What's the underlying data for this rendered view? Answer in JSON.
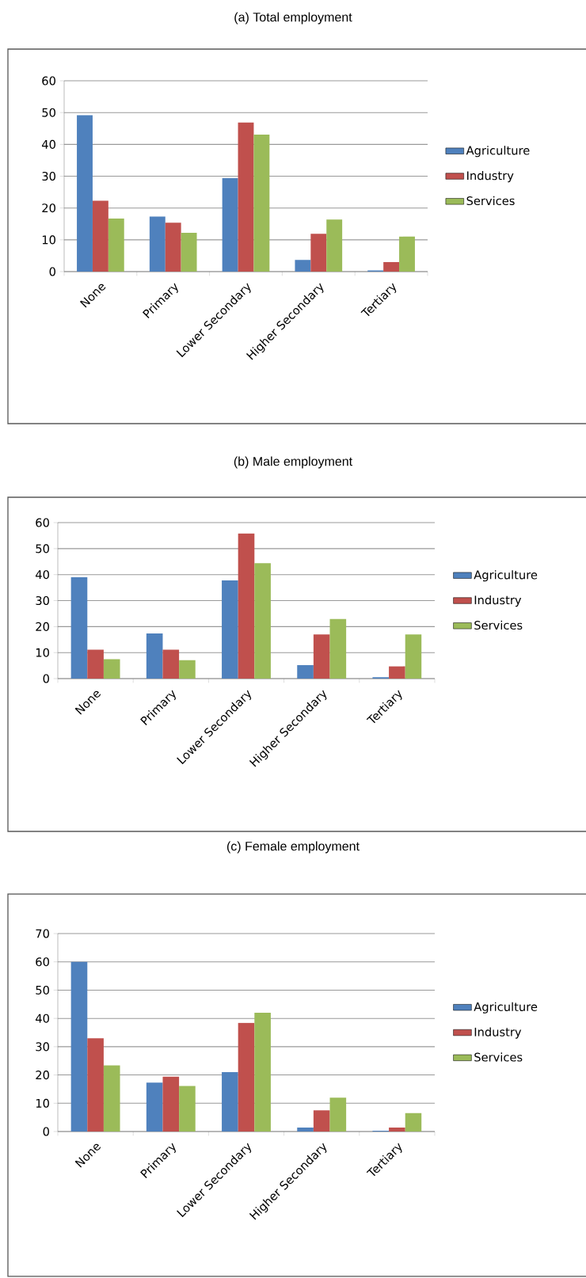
{
  "chart_data": [
    {
      "type": "bar",
      "title": "(a) Total employment",
      "categories": [
        "None",
        "Primary",
        "Lower Secondary",
        "Higher Secondary",
        "Tertiary"
      ],
      "series": [
        {
          "name": "Agriculture",
          "color": "#4f81bd",
          "values": [
            49.2,
            17.3,
            29.4,
            3.7,
            0.4
          ]
        },
        {
          "name": "Industry",
          "color": "#c0504d",
          "values": [
            22.3,
            15.4,
            46.9,
            11.9,
            3.0
          ]
        },
        {
          "name": "Services",
          "color": "#9bbb59",
          "values": [
            16.7,
            12.2,
            43.1,
            16.4,
            11.0
          ]
        }
      ],
      "ylim": [
        0,
        60
      ],
      "yticks": [
        0,
        10,
        20,
        30,
        40,
        50,
        60
      ],
      "grid": "y",
      "legend": "right"
    },
    {
      "type": "bar",
      "title": "(b) Male employment",
      "categories": [
        "None",
        "Primary",
        "Lower Secondary",
        "Higher Secondary",
        "Tertiary"
      ],
      "series": [
        {
          "name": "Agriculture",
          "color": "#4f81bd",
          "values": [
            39.0,
            17.4,
            37.8,
            5.2,
            0.5
          ]
        },
        {
          "name": "Industry",
          "color": "#c0504d",
          "values": [
            11.1,
            11.1,
            55.8,
            17.0,
            4.7
          ]
        },
        {
          "name": "Services",
          "color": "#9bbb59",
          "values": [
            7.5,
            7.1,
            44.4,
            22.9,
            17.0
          ]
        }
      ],
      "ylim": [
        0,
        60
      ],
      "yticks": [
        0,
        10,
        20,
        30,
        40,
        50,
        60
      ],
      "grid": "y",
      "legend": "right"
    },
    {
      "type": "bar",
      "title": "(c) Female employment",
      "categories": [
        "None",
        "Primary",
        "Lower Secondary",
        "Higher Secondary",
        "Tertiary"
      ],
      "series": [
        {
          "name": "Agriculture",
          "color": "#4f81bd",
          "values": [
            60.0,
            17.3,
            21.0,
            1.4,
            0.3
          ]
        },
        {
          "name": "Industry",
          "color": "#c0504d",
          "values": [
            33.0,
            19.4,
            38.4,
            7.5,
            1.4
          ]
        },
        {
          "name": "Services",
          "color": "#9bbb59",
          "values": [
            23.4,
            16.1,
            42.0,
            12.0,
            6.5
          ]
        }
      ],
      "ylim": [
        0,
        70
      ],
      "yticks": [
        0,
        10,
        20,
        30,
        40,
        50,
        60,
        70
      ],
      "grid": "y",
      "legend": "right"
    }
  ]
}
